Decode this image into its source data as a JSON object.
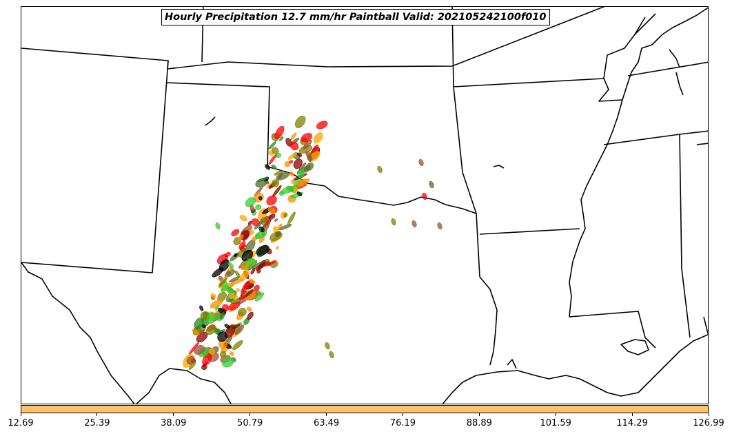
{
  "title": "Hourly Precipitation 12.7 mm/hr Paintball Valid: 202105242100f010",
  "colorbar": {
    "color": "#ffc266",
    "ticks": [
      "12.69",
      "25.39",
      "38.09",
      "50.79",
      "63.49",
      "76.19",
      "88.89",
      "101.59",
      "114.29",
      "126.99"
    ]
  },
  "paintball_colors": [
    "#ff0000",
    "#ff8c00",
    "#ffa500",
    "#a0522d",
    "#8b0000",
    "#32cd32",
    "#228b22",
    "#808000",
    "#000000",
    "#556b2f"
  ]
}
